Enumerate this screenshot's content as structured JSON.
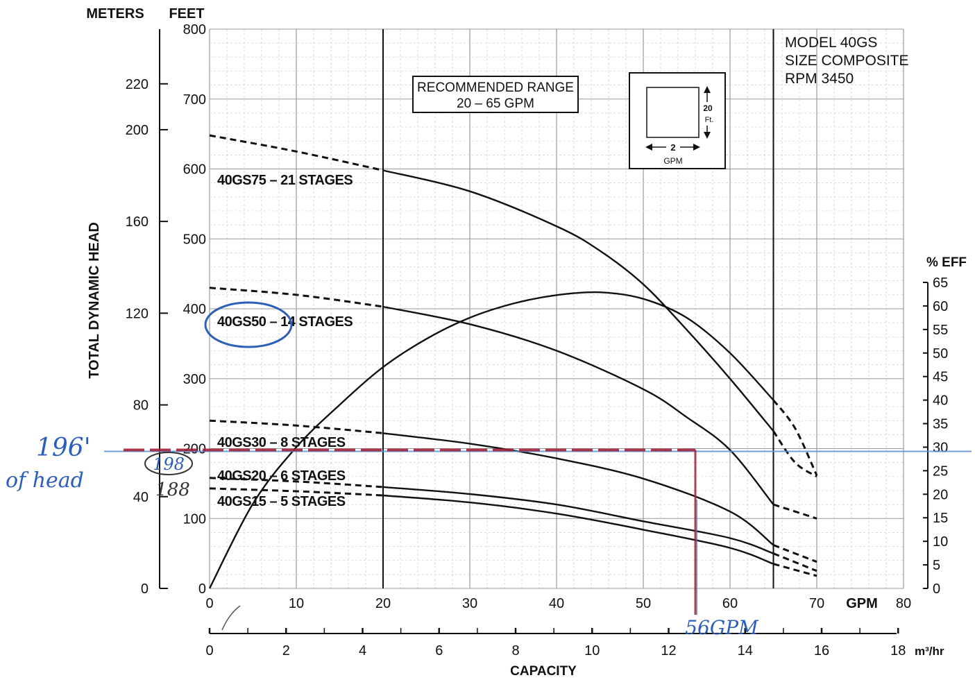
{
  "chart_data": {
    "type": "line",
    "axes": {
      "x_gpm": {
        "unit_label": "GPM",
        "ticks": [
          0,
          10,
          20,
          30,
          40,
          50,
          60,
          70,
          80
        ],
        "range": [
          0,
          80
        ]
      },
      "x_m3hr": {
        "unit_label": "m³/hr",
        "ticks": [
          0,
          2,
          4,
          6,
          8,
          10,
          12,
          14,
          16,
          18
        ],
        "range": [
          0,
          18
        ]
      },
      "xlabel": "CAPACITY",
      "y_feet": {
        "unit_label": "FEET",
        "ticks": [
          0,
          100,
          200,
          300,
          400,
          500,
          600,
          700,
          800
        ],
        "range": [
          0,
          800
        ]
      },
      "y_meters": {
        "unit_label": "METERS",
        "ticks": [
          0,
          40,
          80,
          120,
          160,
          200,
          220
        ]
      },
      "ylabel": "TOTAL DYNAMIC HEAD",
      "y_eff": {
        "unit_label": "% EFF",
        "ticks": [
          0,
          5,
          10,
          15,
          20,
          25,
          30,
          35,
          40,
          45,
          50,
          55,
          60,
          65
        ],
        "range": [
          0,
          65
        ]
      }
    },
    "recommended_range": {
      "text_line1": "RECOMMENDED RANGE",
      "text_line2": "20 – 65 GPM",
      "from_gpm": 20,
      "to_gpm": 65
    },
    "model_info": [
      "MODEL 40GS",
      "SIZE COMPOSITE",
      "RPM 3450"
    ],
    "scale_box": {
      "vertical": "20",
      "vertical_unit": "Ft.",
      "horizontal": "2",
      "horizontal_unit": "GPM"
    },
    "series": [
      {
        "name": "40GS75 – 21 STAGES",
        "dashed_start": [
          [
            0,
            648
          ],
          [
            10,
            625
          ],
          [
            20,
            598
          ]
        ],
        "solid": [
          [
            20,
            598
          ],
          [
            30,
            568
          ],
          [
            40,
            518
          ],
          [
            45,
            483
          ],
          [
            50,
            435
          ],
          [
            55,
            370
          ],
          [
            60,
            300
          ],
          [
            65,
            225
          ]
        ],
        "dashed_end": [
          [
            65,
            225
          ],
          [
            67.5,
            180
          ],
          [
            70,
            160
          ]
        ]
      },
      {
        "name": "40GS50 – 14 STAGES",
        "dashed_start": [
          [
            0,
            430
          ],
          [
            10,
            420
          ],
          [
            20,
            403
          ]
        ],
        "solid": [
          [
            20,
            403
          ],
          [
            30,
            378
          ],
          [
            40,
            340
          ],
          [
            50,
            285
          ],
          [
            55,
            245
          ],
          [
            60,
            198
          ],
          [
            65,
            120
          ]
        ],
        "dashed_end": [
          [
            65,
            120
          ],
          [
            70,
            100
          ]
        ]
      },
      {
        "name": "40GS30 – 8 STAGES",
        "dashed_start": [
          [
            0,
            240
          ],
          [
            10,
            233
          ],
          [
            20,
            222
          ]
        ],
        "solid": [
          [
            20,
            222
          ],
          [
            30,
            207
          ],
          [
            40,
            186
          ],
          [
            50,
            157
          ],
          [
            60,
            110
          ],
          [
            65,
            62
          ]
        ],
        "dashed_end": [
          [
            65,
            62
          ],
          [
            70,
            38
          ]
        ]
      },
      {
        "name": "40GS20 – 6 STAGES",
        "dashed_start": [
          [
            0,
            158
          ],
          [
            10,
            153
          ],
          [
            20,
            145
          ]
        ],
        "solid": [
          [
            20,
            145
          ],
          [
            30,
            135
          ],
          [
            40,
            120
          ],
          [
            50,
            96
          ],
          [
            60,
            72
          ],
          [
            65,
            50
          ]
        ],
        "dashed_end": [
          [
            65,
            50
          ],
          [
            70,
            25
          ]
        ]
      },
      {
        "name": "40GS15 – 5 STAGES",
        "dashed_start": [
          [
            0,
            143
          ],
          [
            10,
            139
          ],
          [
            20,
            133
          ]
        ],
        "solid": [
          [
            20,
            133
          ],
          [
            30,
            123
          ],
          [
            40,
            107
          ],
          [
            50,
            84
          ],
          [
            60,
            58
          ],
          [
            65,
            35
          ]
        ],
        "dashed_end": [
          [
            65,
            35
          ],
          [
            70,
            18
          ]
        ]
      }
    ],
    "efficiency_curve": {
      "unit": "% EFF",
      "points": [
        [
          0,
          0
        ],
        [
          5,
          18
        ],
        [
          10,
          30
        ],
        [
          15,
          39
        ],
        [
          20,
          47
        ],
        [
          25,
          53
        ],
        [
          30,
          57.5
        ],
        [
          35,
          60.5
        ],
        [
          40,
          62.3
        ],
        [
          45,
          62.9
        ],
        [
          50,
          61.5
        ],
        [
          55,
          57.5
        ],
        [
          60,
          50
        ],
        [
          65,
          40
        ]
      ],
      "dashed_end": [
        [
          65,
          40
        ],
        [
          67.5,
          34
        ],
        [
          70,
          24
        ]
      ]
    },
    "annotations": {
      "left_note_line1": "196'",
      "left_note_line2": "of head",
      "circled_value": "198",
      "value_below": "188",
      "gpm_note": "56GPM",
      "operating_head_ft": 198,
      "operating_gpm": 56,
      "blue_line_eff": 30,
      "circled_model": "40GS50 – 14 STAGES"
    }
  }
}
